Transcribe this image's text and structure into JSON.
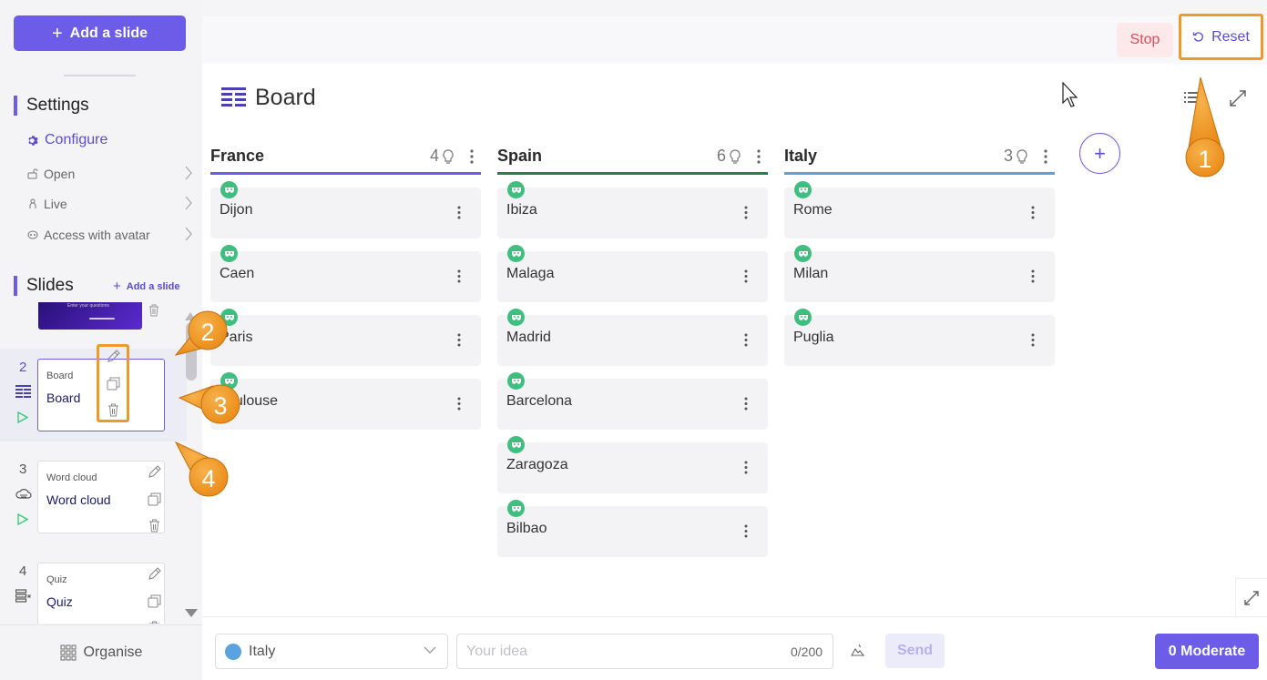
{
  "sidebar": {
    "add_slide_label": "Add a slide",
    "settings_title": "Settings",
    "configure_label": "Configure",
    "menu": [
      {
        "label": "Open"
      },
      {
        "label": "Live"
      },
      {
        "label": "Access with avatar"
      }
    ],
    "slides_title": "Slides",
    "add_slide_link": "Add a slide",
    "top_thumb_text": "Enter your questions",
    "slides": [
      {
        "num": "2",
        "type": "Board",
        "name": "Board"
      },
      {
        "num": "3",
        "type": "Word cloud",
        "name": "Word cloud"
      },
      {
        "num": "4",
        "type": "Quiz",
        "name": "Quiz"
      }
    ],
    "organise_label": "Organise"
  },
  "topbar": {
    "stop_label": "Stop",
    "reset_label": "Reset"
  },
  "board": {
    "title": "Board",
    "columns": [
      {
        "name": "France",
        "count": "4",
        "color": "#6c5ce7",
        "cards": [
          "Dijon",
          "Caen",
          "Paris",
          "Toulouse"
        ]
      },
      {
        "name": "Spain",
        "count": "6",
        "color": "#2e7d4f",
        "cards": [
          "Ibiza",
          "Malaga",
          "Madrid",
          "Barcelona",
          "Zaragoza",
          "Bilbao"
        ]
      },
      {
        "name": "Italy",
        "count": "3",
        "color": "#5ba3e0",
        "cards": [
          "Rome",
          "Milan",
          "Puglia"
        ]
      }
    ]
  },
  "composer": {
    "selected_column": "Italy",
    "idea_placeholder": "Your idea",
    "idea_count": "0/200",
    "send_label": "Send",
    "moderate_label": "0 Moderate"
  },
  "callouts": [
    "1",
    "2",
    "3",
    "4"
  ],
  "colors": {
    "accent": "#6c5ce7",
    "highlight": "#ef9a28",
    "stop": "#e14b5a"
  }
}
